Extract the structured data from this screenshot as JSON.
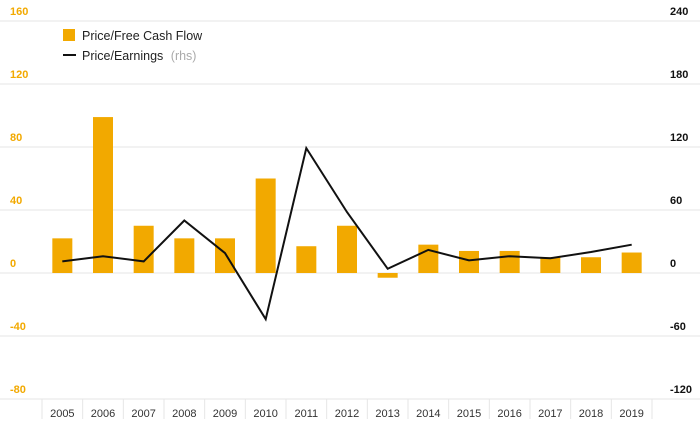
{
  "chart_data": {
    "type": "bar",
    "categories": [
      "2005",
      "2006",
      "2007",
      "2008",
      "2009",
      "2010",
      "2011",
      "2012",
      "2013",
      "2014",
      "2015",
      "2016",
      "2017",
      "2018",
      "2019"
    ],
    "series": [
      {
        "name": "Price/Free Cash Flow",
        "type": "bar",
        "axis": "left",
        "color": "#f2a900",
        "values": [
          22,
          99,
          30,
          22,
          22,
          60,
          17,
          30,
          -3,
          18,
          14,
          14,
          10,
          10,
          13
        ]
      },
      {
        "name": "Price/Earnings",
        "name_suffix": "(rhs)",
        "type": "line",
        "axis": "right",
        "color": "#111111",
        "values": [
          11,
          16,
          11,
          50,
          19,
          -44,
          119,
          58,
          4,
          22,
          12,
          16,
          14,
          20,
          27
        ]
      }
    ],
    "yaxis_left": {
      "ylim": [
        -80,
        160
      ],
      "ticks": [
        160,
        120,
        80,
        40,
        0,
        -40,
        -80
      ],
      "color": "#f2a900"
    },
    "yaxis_right": {
      "ylim": [
        -120,
        240
      ],
      "ticks": [
        240,
        180,
        120,
        60,
        0,
        -60,
        -120
      ],
      "color": "#111111"
    },
    "grid": true,
    "legend_position": "top-left"
  }
}
